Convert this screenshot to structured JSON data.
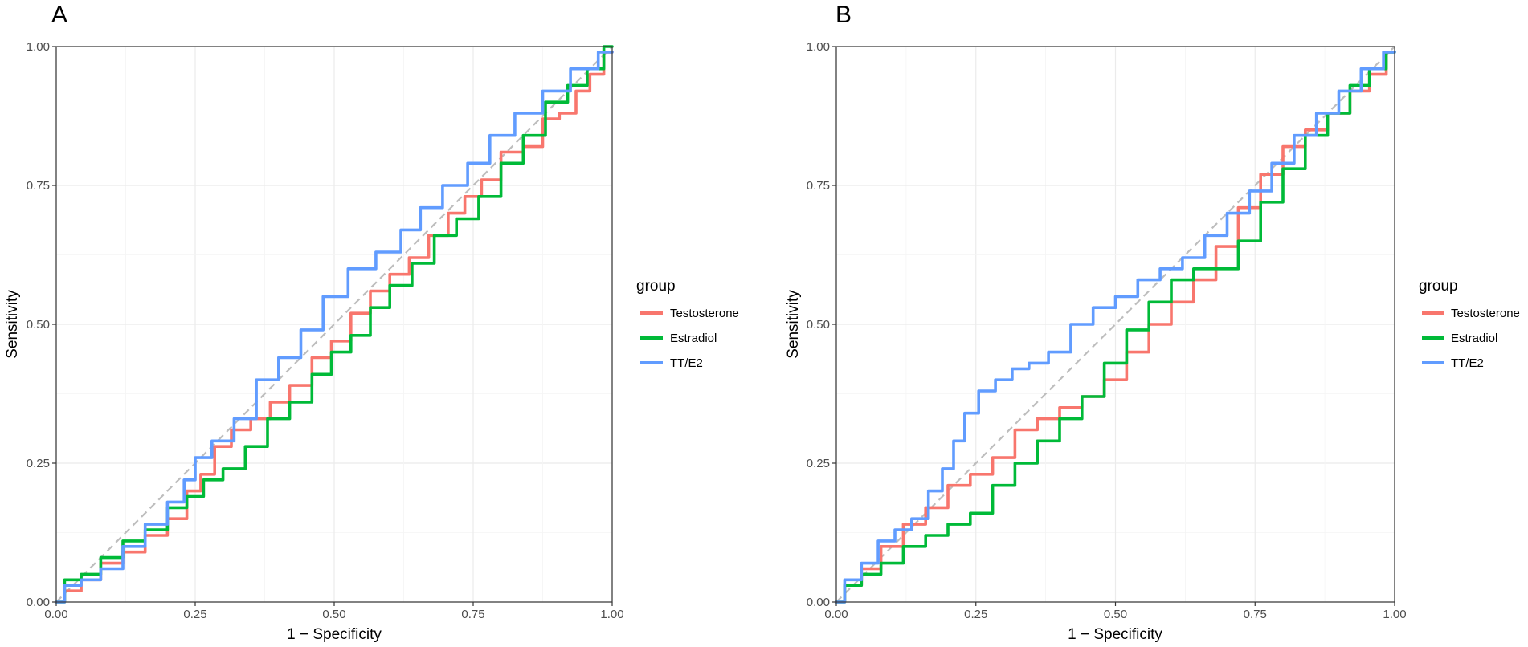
{
  "chart_data": [
    {
      "type": "line",
      "panel_label": "A",
      "xlabel": "1 − Specificity",
      "ylabel": "Sensitivity",
      "xlim": [
        0,
        1
      ],
      "ylim": [
        0,
        1
      ],
      "x_ticks": [
        "0.00",
        "0.25",
        "0.50",
        "0.75",
        "1.00"
      ],
      "y_ticks": [
        "0.00",
        "0.25",
        "0.50",
        "0.75",
        "1.00"
      ],
      "grid": true,
      "reference_line": {
        "from": [
          0,
          0
        ],
        "to": [
          1,
          1
        ],
        "style": "dashed",
        "color": "#bdbdbd"
      },
      "legend": {
        "title": "group",
        "position": "right"
      },
      "series": [
        {
          "name": "Testosterone",
          "color": "#F8766D",
          "x": [
            0,
            0.03,
            0.06,
            0.1,
            0.14,
            0.18,
            0.22,
            0.25,
            0.27,
            0.3,
            0.33,
            0.37,
            0.4,
            0.44,
            0.48,
            0.51,
            0.55,
            0.58,
            0.62,
            0.65,
            0.69,
            0.72,
            0.75,
            0.78,
            0.82,
            0.86,
            0.89,
            0.92,
            0.95,
            0.97,
            1.0
          ],
          "y": [
            0,
            0.02,
            0.04,
            0.07,
            0.09,
            0.12,
            0.15,
            0.2,
            0.23,
            0.28,
            0.31,
            0.33,
            0.36,
            0.39,
            0.44,
            0.47,
            0.52,
            0.56,
            0.59,
            0.62,
            0.66,
            0.7,
            0.73,
            0.76,
            0.81,
            0.82,
            0.87,
            0.88,
            0.92,
            0.95,
            0.99
          ]
        },
        {
          "name": "Estradiol",
          "color": "#00BA38",
          "x": [
            0,
            0.03,
            0.06,
            0.1,
            0.14,
            0.18,
            0.22,
            0.25,
            0.28,
            0.32,
            0.36,
            0.4,
            0.44,
            0.48,
            0.51,
            0.55,
            0.58,
            0.62,
            0.66,
            0.7,
            0.74,
            0.78,
            0.82,
            0.86,
            0.9,
            0.94,
            0.97,
            1.0
          ],
          "y": [
            0,
            0.04,
            0.05,
            0.08,
            0.11,
            0.13,
            0.17,
            0.19,
            0.22,
            0.24,
            0.28,
            0.33,
            0.36,
            0.41,
            0.45,
            0.48,
            0.53,
            0.57,
            0.61,
            0.66,
            0.69,
            0.73,
            0.79,
            0.84,
            0.9,
            0.93,
            0.96,
            1.0
          ]
        },
        {
          "name": "TT/E2",
          "color": "#619CFF",
          "x": [
            0,
            0.03,
            0.06,
            0.1,
            0.14,
            0.18,
            0.22,
            0.24,
            0.26,
            0.3,
            0.34,
            0.38,
            0.42,
            0.46,
            0.5,
            0.55,
            0.6,
            0.64,
            0.67,
            0.72,
            0.76,
            0.8,
            0.85,
            0.9,
            0.95,
            1.0
          ],
          "y": [
            0,
            0.03,
            0.04,
            0.06,
            0.1,
            0.14,
            0.18,
            0.22,
            0.26,
            0.29,
            0.33,
            0.4,
            0.44,
            0.49,
            0.55,
            0.6,
            0.63,
            0.67,
            0.71,
            0.75,
            0.79,
            0.84,
            0.88,
            0.92,
            0.96,
            0.99
          ]
        }
      ]
    },
    {
      "type": "line",
      "panel_label": "B",
      "xlabel": "1 − Specificity",
      "ylabel": "Sensitivity",
      "xlim": [
        0,
        1
      ],
      "ylim": [
        0,
        1
      ],
      "x_ticks": [
        "0.00",
        "0.25",
        "0.50",
        "0.75",
        "1.00"
      ],
      "y_ticks": [
        "0.00",
        "0.25",
        "0.50",
        "0.75",
        "1.00"
      ],
      "grid": true,
      "reference_line": {
        "from": [
          0,
          0
        ],
        "to": [
          1,
          1
        ],
        "style": "dashed",
        "color": "#bdbdbd"
      },
      "legend": {
        "title": "group",
        "position": "right"
      },
      "series": [
        {
          "name": "Testosterone",
          "color": "#F8766D",
          "x": [
            0,
            0.03,
            0.06,
            0.1,
            0.14,
            0.18,
            0.22,
            0.26,
            0.3,
            0.34,
            0.38,
            0.42,
            0.46,
            0.5,
            0.54,
            0.58,
            0.62,
            0.66,
            0.7,
            0.74,
            0.78,
            0.82,
            0.86,
            0.9,
            0.94,
            0.97,
            1.0
          ],
          "y": [
            0,
            0.03,
            0.06,
            0.1,
            0.14,
            0.17,
            0.21,
            0.23,
            0.26,
            0.31,
            0.33,
            0.35,
            0.37,
            0.4,
            0.45,
            0.5,
            0.54,
            0.58,
            0.64,
            0.71,
            0.77,
            0.82,
            0.85,
            0.88,
            0.92,
            0.95,
            0.99
          ]
        },
        {
          "name": "Estradiol",
          "color": "#00BA38",
          "x": [
            0,
            0.03,
            0.06,
            0.1,
            0.14,
            0.18,
            0.22,
            0.26,
            0.3,
            0.34,
            0.38,
            0.42,
            0.46,
            0.5,
            0.54,
            0.58,
            0.62,
            0.66,
            0.7,
            0.74,
            0.78,
            0.82,
            0.86,
            0.9,
            0.94,
            0.97,
            1.0
          ],
          "y": [
            0,
            0.03,
            0.05,
            0.07,
            0.1,
            0.12,
            0.14,
            0.16,
            0.21,
            0.25,
            0.29,
            0.33,
            0.37,
            0.43,
            0.49,
            0.54,
            0.58,
            0.6,
            0.6,
            0.65,
            0.72,
            0.78,
            0.84,
            0.88,
            0.93,
            0.96,
            0.99
          ]
        },
        {
          "name": "TT/E2",
          "color": "#619CFF",
          "x": [
            0,
            0.03,
            0.06,
            0.09,
            0.12,
            0.15,
            0.18,
            0.2,
            0.22,
            0.24,
            0.27,
            0.3,
            0.33,
            0.36,
            0.4,
            0.44,
            0.48,
            0.52,
            0.56,
            0.6,
            0.64,
            0.68,
            0.72,
            0.76,
            0.8,
            0.84,
            0.88,
            0.92,
            0.96,
            1.0
          ],
          "y": [
            0,
            0.04,
            0.07,
            0.11,
            0.13,
            0.15,
            0.2,
            0.24,
            0.29,
            0.34,
            0.38,
            0.4,
            0.42,
            0.43,
            0.45,
            0.5,
            0.53,
            0.55,
            0.58,
            0.6,
            0.62,
            0.66,
            0.7,
            0.74,
            0.79,
            0.84,
            0.88,
            0.92,
            0.96,
            0.99
          ]
        }
      ]
    }
  ]
}
